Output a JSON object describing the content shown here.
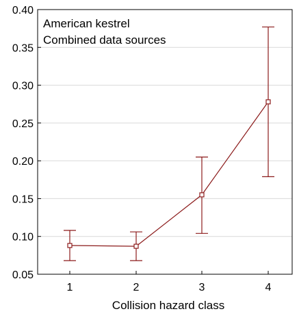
{
  "chart_data": {
    "type": "line",
    "title": "",
    "xlabel": "Collision hazard class",
    "ylabel": "",
    "annotations": [
      "American kestrel",
      "Combined data sources"
    ],
    "categories": [
      "1",
      "2",
      "3",
      "4"
    ],
    "series": [
      {
        "values": [
          0.088,
          0.087,
          0.155,
          0.278
        ],
        "lower": [
          0.068,
          0.068,
          0.104,
          0.179
        ],
        "upper": [
          0.108,
          0.106,
          0.205,
          0.377
        ],
        "color": "#8B1A1A"
      }
    ],
    "ylim": [
      0.05,
      0.4
    ],
    "yticks": [
      "0.05",
      "0.10",
      "0.15",
      "0.20",
      "0.25",
      "0.30",
      "0.35",
      "0.40"
    ],
    "grid": true,
    "colors": {
      "series": "#8B1A1A",
      "grid": "#d9d9d9",
      "axis": "#000000"
    }
  }
}
